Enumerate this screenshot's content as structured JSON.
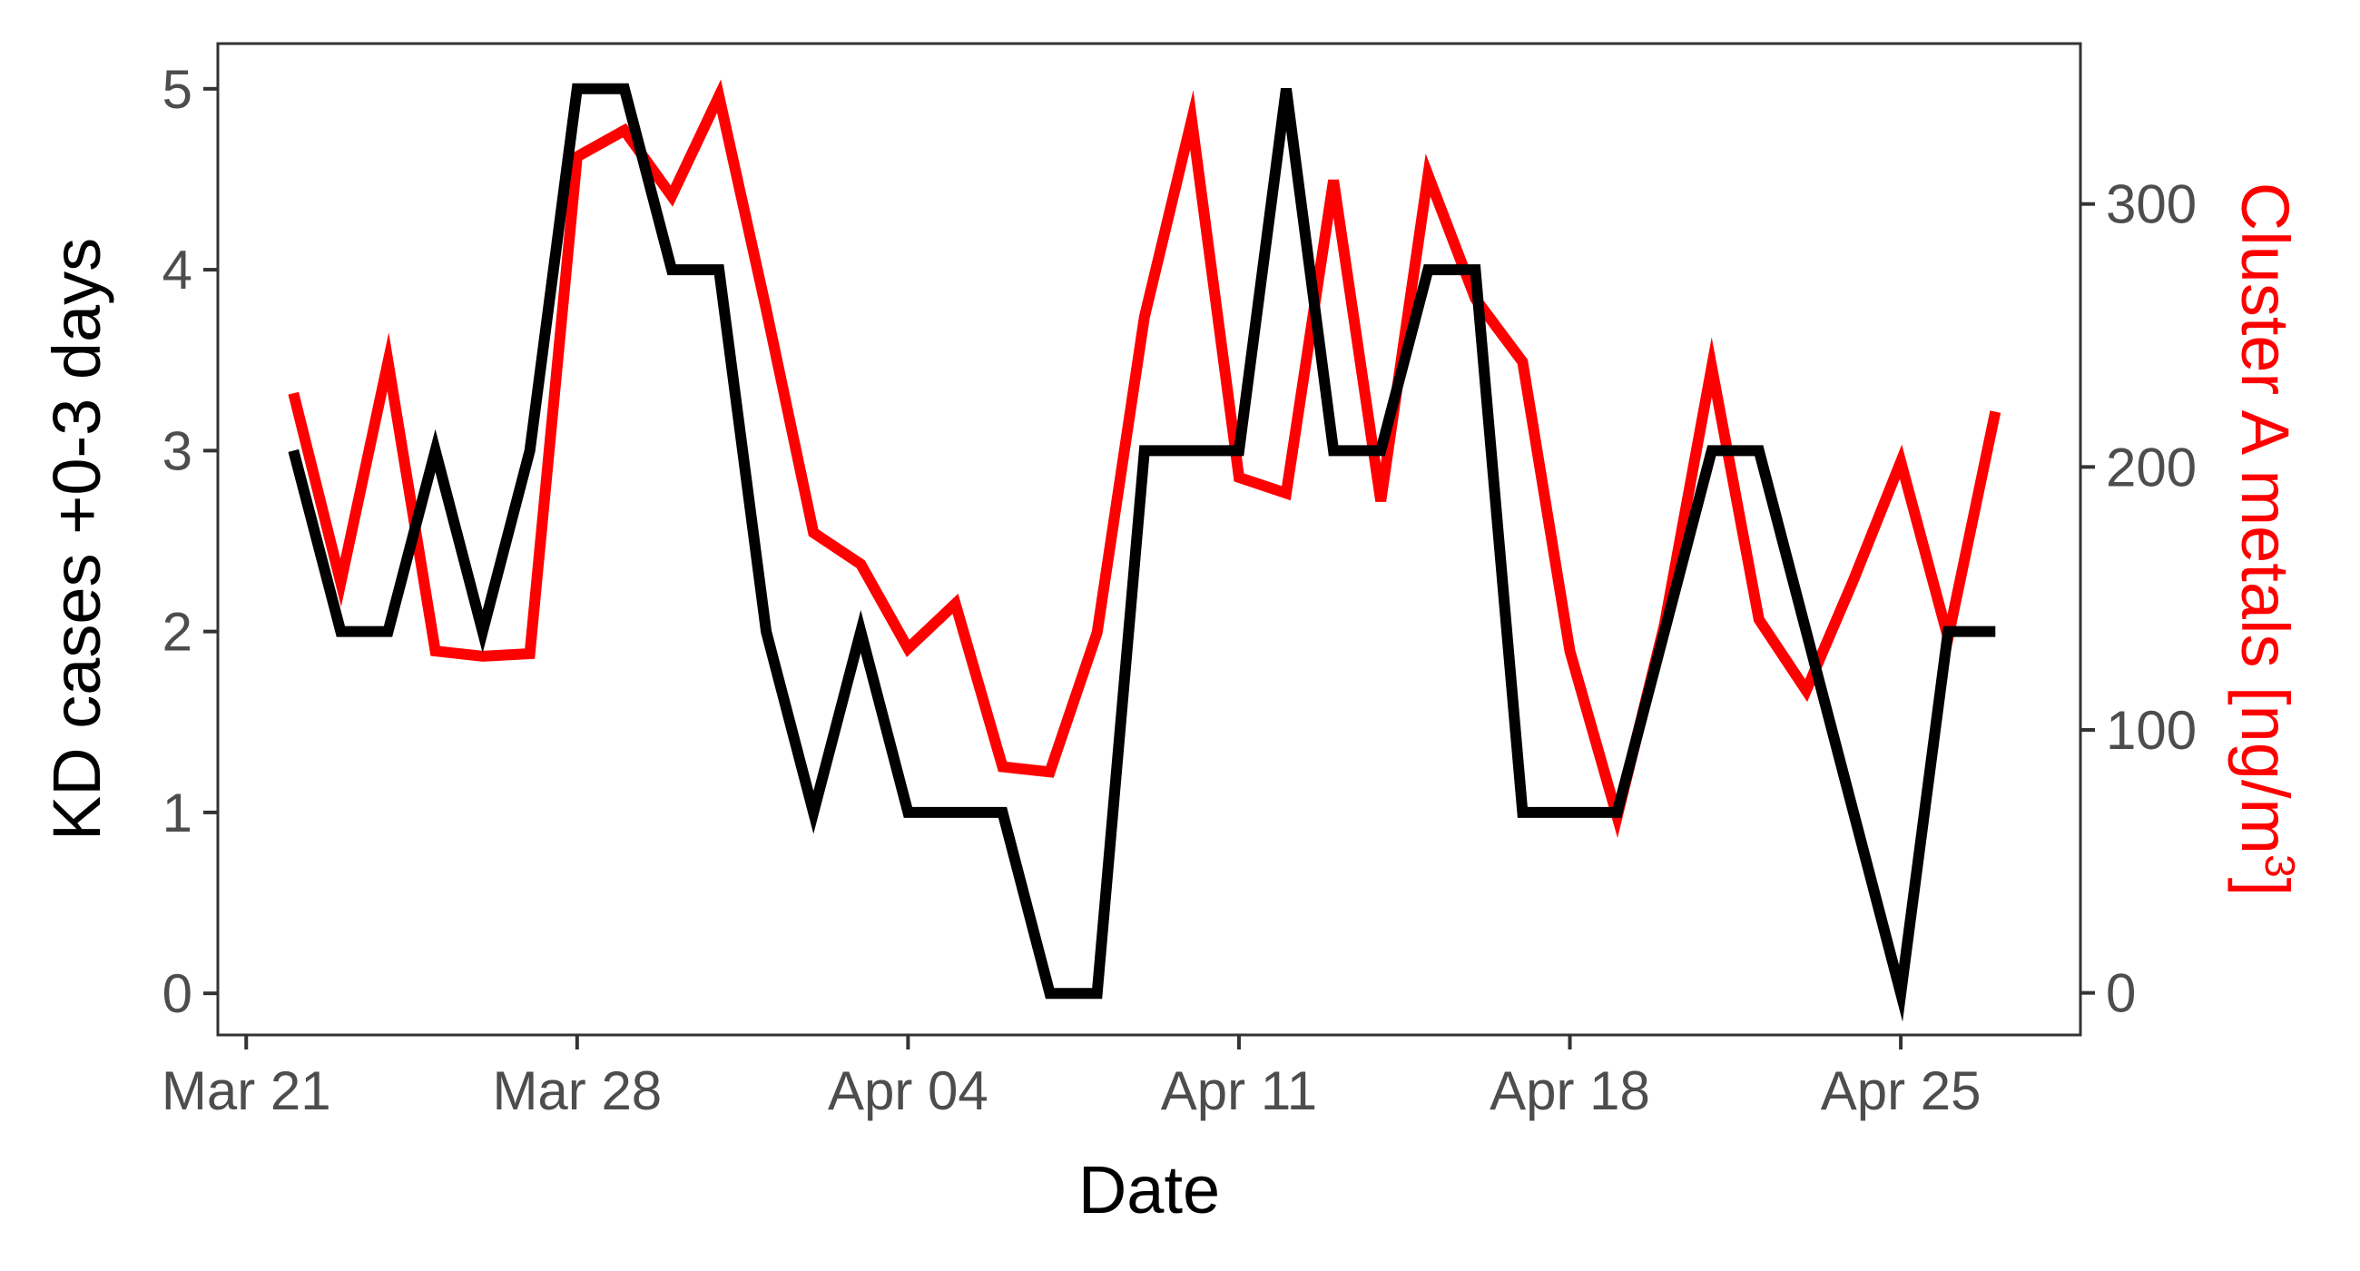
{
  "chart_data": {
    "type": "line",
    "title": "",
    "xlabel": "Date",
    "ylabel": "KD cases +0-3 days",
    "y2label": "Cluster A metals [ng/m",
    "y2label_sup": "3",
    "y2label_close": "]",
    "ylim": [
      -0.23,
      5.25
    ],
    "y2lim": [
      -16,
      361
    ],
    "x_tick_labels": [
      "Mar 21",
      "Mar 28",
      "Apr 04",
      "Apr 11",
      "Apr 18",
      "Apr 25"
    ],
    "x_tick_days": [
      0,
      7,
      14,
      21,
      28,
      35
    ],
    "x_start": "Mar 21",
    "xlim_days": [
      -0.6,
      38.8
    ],
    "y_ticks": [
      0,
      1,
      2,
      3,
      4,
      5
    ],
    "y2_ticks": [
      0,
      100,
      200,
      300
    ],
    "grid": false,
    "legend": "none",
    "series": [
      {
        "axis": "left",
        "color": "#000000",
        "x_days": [
          1,
          2,
          3,
          4,
          5,
          6,
          7,
          8,
          9,
          10,
          11,
          12,
          13,
          14,
          15,
          16,
          17,
          18,
          19,
          20,
          21,
          22,
          23,
          24,
          25,
          26,
          27,
          28,
          29,
          30,
          31,
          32,
          33,
          34,
          35,
          36,
          37
        ],
        "values": [
          3,
          2,
          2,
          3,
          2,
          3,
          5,
          5,
          4,
          4,
          2,
          1,
          2,
          1,
          1,
          1,
          0,
          0,
          3,
          3,
          3,
          5,
          3,
          3,
          4,
          4,
          1,
          1,
          1,
          2,
          3,
          3,
          2,
          1,
          0,
          2,
          2
        ]
      },
      {
        "axis": "right",
        "color": "#ff0000",
        "x_days": [
          1,
          2,
          3,
          4,
          5,
          6,
          7,
          8,
          9,
          10,
          11,
          12,
          13,
          14,
          15,
          16,
          17,
          18,
          19,
          20,
          21,
          22,
          23,
          24,
          25,
          26,
          27,
          28,
          29,
          30,
          31,
          32,
          33,
          34,
          35,
          36,
          37
        ],
        "values": [
          228,
          156,
          240,
          130,
          128,
          129,
          318,
          328,
          303,
          341,
          260,
          175,
          163,
          131,
          148,
          86,
          84,
          137,
          257,
          332,
          196,
          190,
          309,
          187,
          311,
          264,
          240,
          130,
          67,
          140,
          238,
          142,
          115,
          157,
          202,
          135,
          221
        ]
      }
    ]
  }
}
